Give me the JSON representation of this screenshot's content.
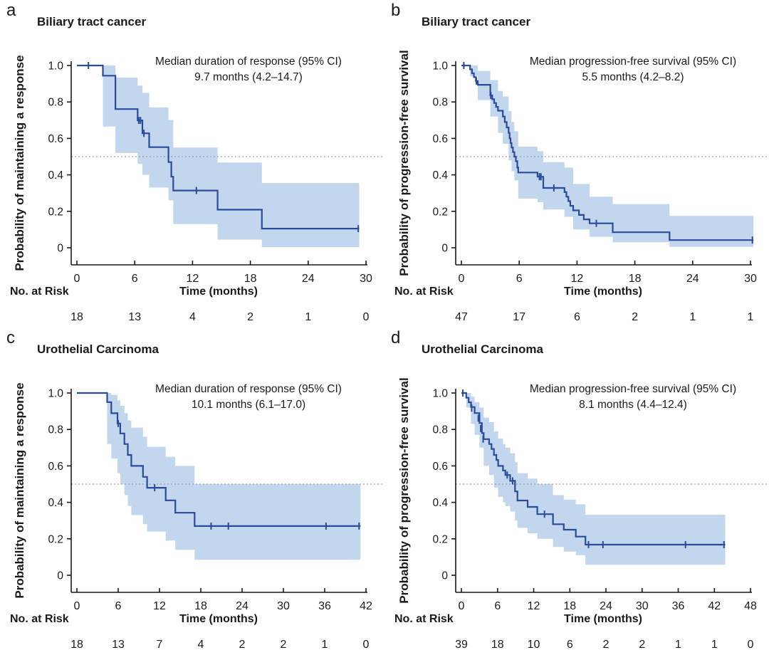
{
  "figure": {
    "background": "#ffffff",
    "curve_color": "#2b4a9c",
    "ci_fill": "#c2d6ee",
    "ref_line_color": "#9e9e9e",
    "axis_color": "#1a1a1a",
    "xlabel": "Time (months)",
    "risk_header": "No. at Risk",
    "ref_line_value": 0.5
  },
  "chart_data": [
    {
      "type": "line",
      "subtype": "kaplan-meier-step",
      "panel_label": "a",
      "title": "Biliary tract cancer",
      "ylabel": "Probability of maintaining a response",
      "xlabel": "Time (months)",
      "annotation": {
        "line1": "Median duration of response (95% CI)",
        "line2": "9.7 months (4.2–14.7)"
      },
      "median_months": 9.7,
      "ci_low_months": 4.2,
      "ci_high_months": 14.7,
      "xlim": [
        0,
        30
      ],
      "ylim": [
        0,
        1
      ],
      "xticks": [
        0,
        6,
        12,
        18,
        24,
        30
      ],
      "ytick_labels": [
        "1.0",
        "0.8",
        "0.6",
        "0.4",
        "0.2",
        "0"
      ],
      "ref_line": 0.5,
      "risk_row": {
        "label": "No. at Risk",
        "values": [
          18,
          13,
          4,
          2,
          1,
          0
        ]
      },
      "end_time": 29.3,
      "steps": [
        [
          0,
          1.0
        ],
        [
          2.7,
          0.944
        ],
        [
          4.0,
          0.761
        ],
        [
          6.3,
          0.699
        ],
        [
          6.8,
          0.628
        ],
        [
          7.5,
          0.552
        ],
        [
          9.5,
          0.47
        ],
        [
          9.8,
          0.39
        ],
        [
          10.0,
          0.314
        ],
        [
          14.6,
          0.209
        ],
        [
          19.2,
          0.105
        ]
      ],
      "censors": [
        [
          1.2,
          1.0
        ],
        [
          6.42,
          0.699
        ],
        [
          6.6,
          0.699
        ],
        [
          6.95,
          0.628
        ],
        [
          12.4,
          0.314
        ],
        [
          29.2,
          0.105
        ]
      ],
      "ci_band": [
        [
          2.7,
          0.665,
          1.0
        ],
        [
          4.0,
          0.52,
          0.934
        ],
        [
          6.3,
          0.46,
          0.89
        ],
        [
          6.8,
          0.4,
          0.85
        ],
        [
          7.5,
          0.33,
          0.77
        ],
        [
          9.5,
          0.26,
          0.7
        ],
        [
          10.0,
          0.13,
          0.55
        ],
        [
          14.6,
          0.045,
          0.468
        ],
        [
          19.2,
          0.004,
          0.355
        ]
      ]
    },
    {
      "type": "line",
      "subtype": "kaplan-meier-step",
      "panel_label": "b",
      "title": "Biliary tract cancer",
      "ylabel": "Probability of progression-free survival",
      "xlabel": "Time (months)",
      "annotation": {
        "line1": "Median progression-free survival (95% CI)",
        "line2": "5.5 months (4.2–8.2)"
      },
      "median_months": 5.5,
      "ci_low_months": 4.2,
      "ci_high_months": 8.2,
      "xlim": [
        0,
        30
      ],
      "ylim": [
        0,
        1
      ],
      "xticks": [
        0,
        6,
        12,
        18,
        24,
        30
      ],
      "ytick_labels": [
        "1.0",
        "0.8",
        "0.6",
        "0.4",
        "0.2",
        "0"
      ],
      "ref_line": 0.5,
      "risk_row": {
        "label": "No. at Risk",
        "values": [
          47,
          17,
          6,
          2,
          1,
          1
        ]
      },
      "end_time": 30.3,
      "steps": [
        [
          0,
          1.0
        ],
        [
          0.9,
          0.979
        ],
        [
          1.1,
          0.957
        ],
        [
          1.3,
          0.936
        ],
        [
          1.5,
          0.915
        ],
        [
          1.7,
          0.894
        ],
        [
          3.0,
          0.836
        ],
        [
          3.2,
          0.815
        ],
        [
          3.4,
          0.794
        ],
        [
          3.6,
          0.773
        ],
        [
          3.8,
          0.752
        ],
        [
          4.3,
          0.72
        ],
        [
          4.5,
          0.69
        ],
        [
          4.7,
          0.66
        ],
        [
          4.9,
          0.63
        ],
        [
          5.0,
          0.6
        ],
        [
          5.1,
          0.575
        ],
        [
          5.2,
          0.55
        ],
        [
          5.35,
          0.525
        ],
        [
          5.5,
          0.5
        ],
        [
          5.65,
          0.475
        ],
        [
          5.8,
          0.44
        ],
        [
          5.9,
          0.413
        ],
        [
          7.9,
          0.39
        ],
        [
          8.5,
          0.328
        ],
        [
          10.7,
          0.305
        ],
        [
          10.9,
          0.28
        ],
        [
          11.1,
          0.256
        ],
        [
          11.3,
          0.23
        ],
        [
          11.6,
          0.205
        ],
        [
          12.2,
          0.18
        ],
        [
          12.7,
          0.156
        ],
        [
          13.3,
          0.134
        ],
        [
          15.7,
          0.085
        ],
        [
          21.6,
          0.042
        ]
      ],
      "censors": [
        [
          0.25,
          1.0
        ],
        [
          1.55,
          0.915
        ],
        [
          3.05,
          0.836
        ],
        [
          8.1,
          0.39
        ],
        [
          8.25,
          0.39
        ],
        [
          9.6,
          0.328
        ],
        [
          14.0,
          0.134
        ],
        [
          30.2,
          0.042
        ]
      ],
      "ci_band": [
        [
          0.9,
          0.94,
          1.0
        ],
        [
          1.7,
          0.81,
          0.97
        ],
        [
          3.0,
          0.72,
          0.92
        ],
        [
          3.8,
          0.63,
          0.86
        ],
        [
          4.3,
          0.57,
          0.83
        ],
        [
          4.9,
          0.48,
          0.75
        ],
        [
          5.2,
          0.42,
          0.69
        ],
        [
          5.5,
          0.37,
          0.64
        ],
        [
          5.9,
          0.27,
          0.555
        ],
        [
          7.9,
          0.25,
          0.53
        ],
        [
          8.5,
          0.21,
          0.47
        ],
        [
          10.7,
          0.17,
          0.44
        ],
        [
          11.6,
          0.1,
          0.35
        ],
        [
          13.3,
          0.06,
          0.28
        ],
        [
          15.7,
          0.03,
          0.24
        ],
        [
          21.6,
          0.005,
          0.175
        ]
      ]
    },
    {
      "type": "line",
      "subtype": "kaplan-meier-step",
      "panel_label": "c",
      "title": "Urothelial Carcinoma",
      "ylabel": "Probability of maintaining a response",
      "xlabel": "Time (months)",
      "annotation": {
        "line1": "Median duration of response (95% CI)",
        "line2": "10.1 months (6.1–17.0)"
      },
      "median_months": 10.1,
      "ci_low_months": 6.1,
      "ci_high_months": 17.0,
      "xlim": [
        0,
        42
      ],
      "ylim": [
        0,
        1
      ],
      "xticks": [
        0,
        6,
        12,
        18,
        24,
        30,
        36,
        42
      ],
      "ytick_labels": [
        "1.0",
        "0.8",
        "0.6",
        "0.4",
        "0.2",
        "0"
      ],
      "ref_line": 0.5,
      "risk_row": {
        "label": "No. at Risk",
        "values": [
          18,
          13,
          7,
          4,
          2,
          2,
          1,
          0
        ]
      },
      "end_time": 41.2,
      "steps": [
        [
          0,
          1.0
        ],
        [
          4.4,
          0.95
        ],
        [
          5.0,
          0.889
        ],
        [
          5.9,
          0.833
        ],
        [
          6.3,
          0.778
        ],
        [
          6.9,
          0.72
        ],
        [
          7.4,
          0.66
        ],
        [
          7.9,
          0.6
        ],
        [
          9.6,
          0.54
        ],
        [
          10.2,
          0.48
        ],
        [
          12.9,
          0.411
        ],
        [
          14.3,
          0.343
        ],
        [
          17.1,
          0.27
        ]
      ],
      "censors": [
        [
          6.0,
          0.833
        ],
        [
          11.3,
          0.48
        ],
        [
          19.5,
          0.27
        ],
        [
          22.0,
          0.27
        ],
        [
          36.2,
          0.27
        ],
        [
          41.0,
          0.27
        ]
      ],
      "ci_band": [
        [
          4.4,
          0.72,
          1.0
        ],
        [
          5.0,
          0.64,
          0.99
        ],
        [
          5.9,
          0.56,
          0.96
        ],
        [
          6.3,
          0.5,
          0.93
        ],
        [
          6.9,
          0.44,
          0.89
        ],
        [
          7.4,
          0.38,
          0.85
        ],
        [
          7.9,
          0.33,
          0.81
        ],
        [
          9.6,
          0.28,
          0.76
        ],
        [
          10.2,
          0.24,
          0.705
        ],
        [
          12.9,
          0.19,
          0.65
        ],
        [
          14.3,
          0.14,
          0.6
        ],
        [
          17.1,
          0.085,
          0.5
        ]
      ]
    },
    {
      "type": "line",
      "subtype": "kaplan-meier-step",
      "panel_label": "d",
      "title": "Urothelial Carcinoma",
      "ylabel": "Probability of progression-free survival",
      "xlabel": "Time (months)",
      "annotation": {
        "line1": "Median progression-free survival (95% CI)",
        "line2": "8.1 months (4.4–12.4)"
      },
      "median_months": 8.1,
      "ci_low_months": 4.4,
      "ci_high_months": 12.4,
      "xlim": [
        0,
        48
      ],
      "ylim": [
        0,
        1
      ],
      "xticks": [
        0,
        6,
        12,
        18,
        24,
        30,
        36,
        42,
        48
      ],
      "ytick_labels": [
        "1.0",
        "0.8",
        "0.6",
        "0.4",
        "0.2",
        "0"
      ],
      "ref_line": 0.5,
      "risk_row": {
        "label": "No. at Risk",
        "values": [
          39,
          18,
          10,
          6,
          2,
          2,
          1,
          1,
          0
        ]
      },
      "end_time": 43.8,
      "steps": [
        [
          0,
          1.0
        ],
        [
          0.8,
          0.974
        ],
        [
          1.2,
          0.949
        ],
        [
          1.6,
          0.923
        ],
        [
          2.2,
          0.89
        ],
        [
          3.0,
          0.835
        ],
        [
          3.4,
          0.78
        ],
        [
          3.7,
          0.747
        ],
        [
          4.6,
          0.72
        ],
        [
          5.0,
          0.693
        ],
        [
          5.4,
          0.66
        ],
        [
          5.8,
          0.633
        ],
        [
          6.1,
          0.6
        ],
        [
          6.9,
          0.575
        ],
        [
          7.3,
          0.55
        ],
        [
          8.1,
          0.518
        ],
        [
          8.9,
          0.46
        ],
        [
          9.3,
          0.41
        ],
        [
          11.0,
          0.375
        ],
        [
          12.6,
          0.335
        ],
        [
          15.2,
          0.28
        ],
        [
          17.0,
          0.25
        ],
        [
          19.0,
          0.212
        ],
        [
          20.6,
          0.168
        ]
      ],
      "censors": [
        [
          0.25,
          1.0
        ],
        [
          1.7,
          0.917
        ],
        [
          2.8,
          0.862
        ],
        [
          3.2,
          0.805
        ],
        [
          3.6,
          0.747
        ],
        [
          7.6,
          0.55
        ],
        [
          8.5,
          0.518
        ],
        [
          13.8,
          0.335
        ],
        [
          21.1,
          0.168
        ],
        [
          23.5,
          0.168
        ],
        [
          37.2,
          0.168
        ],
        [
          43.6,
          0.168
        ]
      ],
      "ci_band": [
        [
          0.8,
          0.92,
          1.0
        ],
        [
          1.6,
          0.83,
          0.98
        ],
        [
          2.2,
          0.77,
          0.95
        ],
        [
          3.0,
          0.7,
          0.92
        ],
        [
          3.7,
          0.6,
          0.865
        ],
        [
          4.6,
          0.55,
          0.84
        ],
        [
          5.4,
          0.48,
          0.79
        ],
        [
          6.1,
          0.43,
          0.75
        ],
        [
          6.9,
          0.4,
          0.72
        ],
        [
          7.3,
          0.38,
          0.7
        ],
        [
          8.1,
          0.35,
          0.67
        ],
        [
          8.9,
          0.3,
          0.62
        ],
        [
          9.3,
          0.26,
          0.56
        ],
        [
          11.0,
          0.23,
          0.53
        ],
        [
          12.6,
          0.2,
          0.5
        ],
        [
          15.2,
          0.155,
          0.44
        ],
        [
          17.0,
          0.13,
          0.415
        ],
        [
          19.0,
          0.11,
          0.39
        ],
        [
          20.6,
          0.057,
          0.332
        ]
      ]
    }
  ]
}
